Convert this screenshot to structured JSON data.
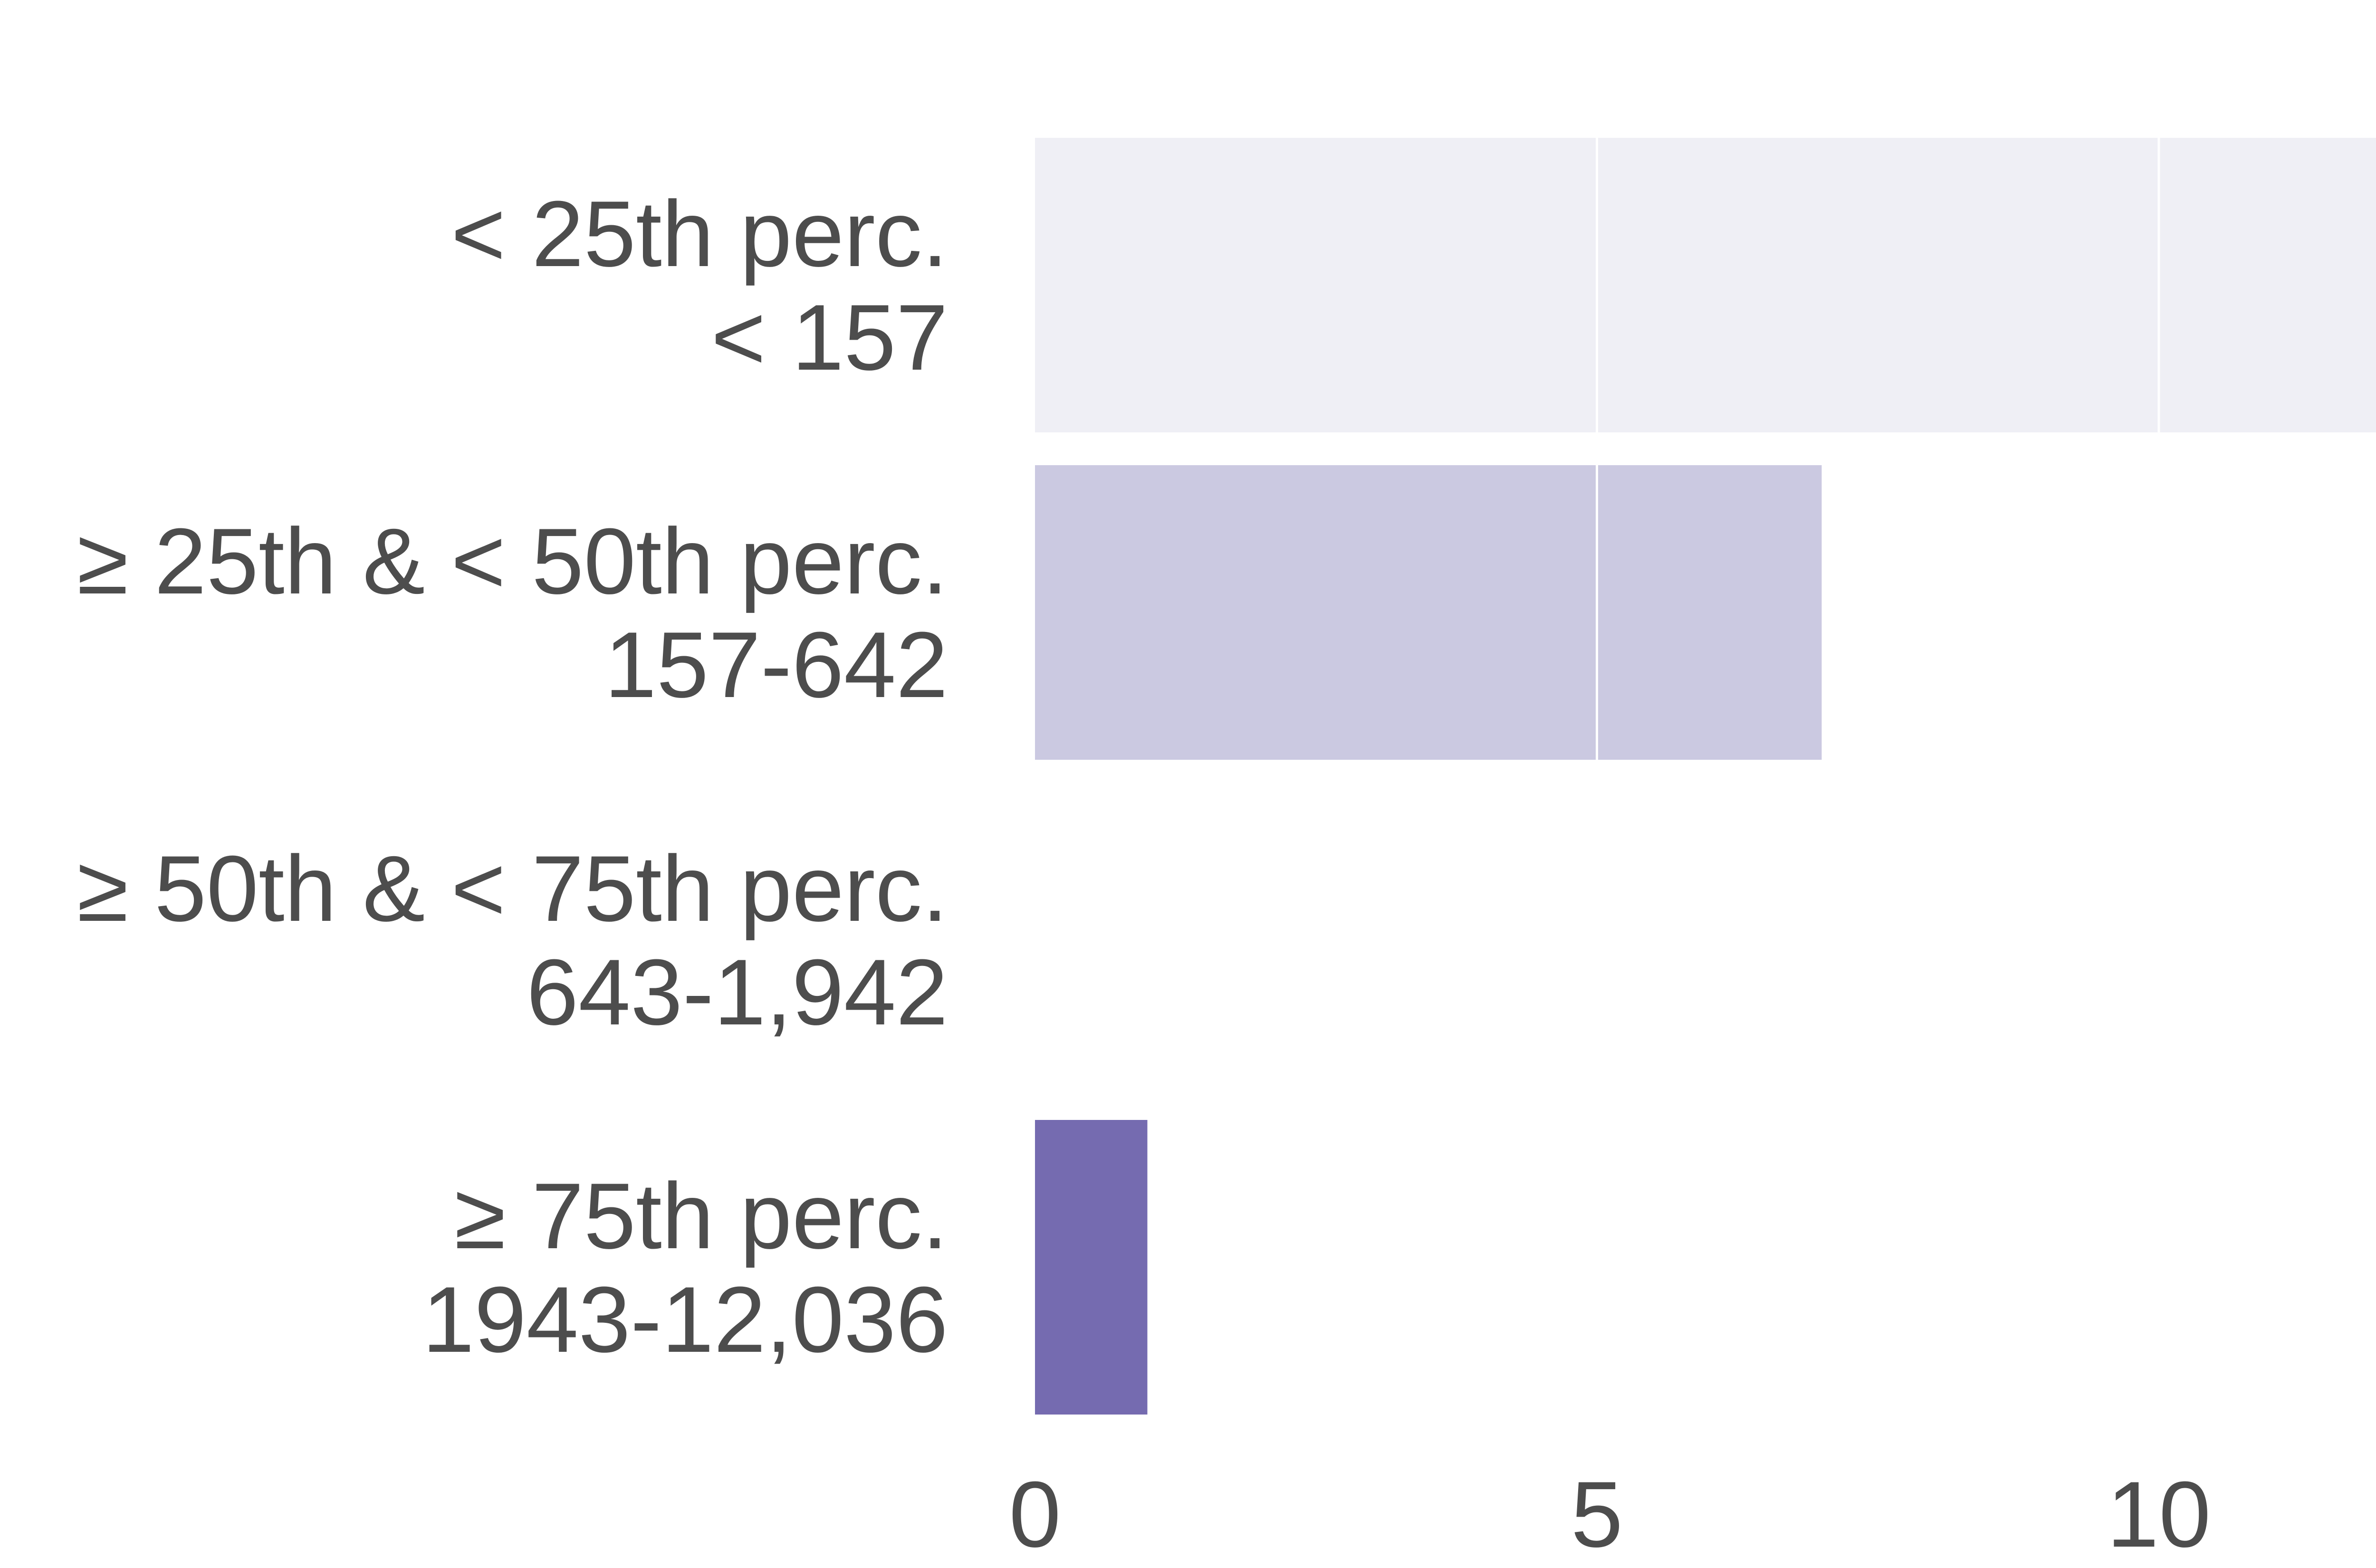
{
  "chart_data": {
    "type": "bar",
    "orientation": "horizontal",
    "categories": [
      [
        "< 25th perc.",
        "< 157"
      ],
      [
        "≥ 25th & < 50th perc.",
        "157-642"
      ],
      [
        "≥ 50th & < 75th perc.",
        "643-1,942"
      ],
      [
        "≥ 75th perc.",
        "1943-12,036"
      ]
    ],
    "values": [
      12,
      7,
      0,
      1
    ],
    "bar_colors": [
      "#efeff5",
      "#cbc9e1",
      "#9e9ac8",
      "#756bb0"
    ],
    "gridline_color": "#ffffff",
    "xlim": [
      0,
      12
    ],
    "xticks": [
      0,
      5,
      10
    ],
    "xtick_labels": [
      "0",
      "5",
      "10"
    ],
    "grid": true,
    "text_color": "#4d4d4d"
  }
}
